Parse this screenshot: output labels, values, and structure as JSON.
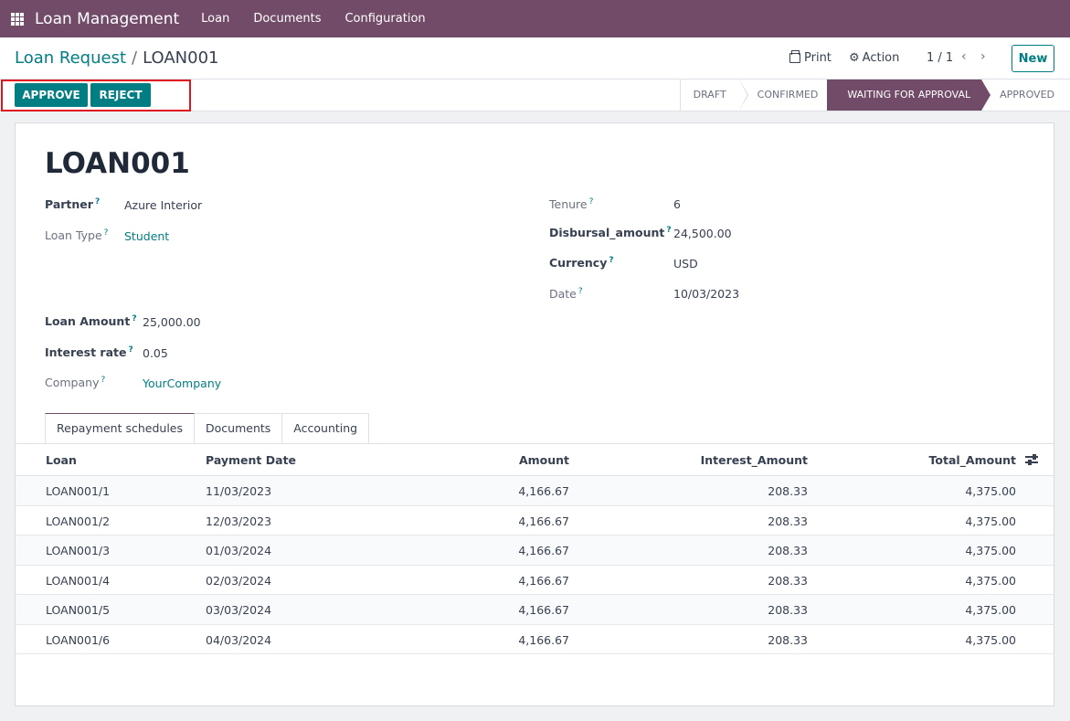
{
  "navbar": {
    "app_title": "Loan Management",
    "menu": [
      "Loan",
      "Documents",
      "Configuration"
    ]
  },
  "control": {
    "breadcrumb_parent": "Loan Request",
    "breadcrumb_sep": "/",
    "breadcrumb_current": "LOAN001",
    "print_label": "Print",
    "action_label": "Action",
    "pager": "1 / 1",
    "new_label": "New"
  },
  "statusbar": {
    "approve_label": "APPROVE",
    "reject_label": "REJECT",
    "stages": [
      "DRAFT",
      "CONFIRMED",
      "WAITING FOR APPROVAL",
      "APPROVED"
    ],
    "active_stage": "WAITING FOR APPROVAL"
  },
  "form": {
    "name": "LOAN001",
    "help_mark": "?",
    "partner_label": "Partner",
    "partner_value": "Azure Interior",
    "loan_type_label": "Loan Type",
    "loan_type_value": "Student",
    "tenure_label": "Tenure",
    "tenure_value": "6",
    "disbursal_label": "Disbursal_amount",
    "disbursal_value": "24,500.00",
    "currency_label": "Currency",
    "currency_value": "USD",
    "date_label": "Date",
    "date_value": "10/03/2023",
    "loan_amount_label": "Loan Amount",
    "loan_amount_value": "25,000.00",
    "interest_label": "Interest rate",
    "interest_value": "0.05",
    "company_label": "Company",
    "company_value": "YourCompany"
  },
  "tabs": [
    "Repayment schedules",
    "Documents",
    "Accounting"
  ],
  "table": {
    "headers": [
      "Loan",
      "Payment Date",
      "Amount",
      "Interest_Amount",
      "Total_Amount"
    ],
    "rows": [
      [
        "LOAN001/1",
        "11/03/2023",
        "4,166.67",
        "208.33",
        "4,375.00"
      ],
      [
        "LOAN001/2",
        "12/03/2023",
        "4,166.67",
        "208.33",
        "4,375.00"
      ],
      [
        "LOAN001/3",
        "01/03/2024",
        "4,166.67",
        "208.33",
        "4,375.00"
      ],
      [
        "LOAN001/4",
        "02/03/2024",
        "4,166.67",
        "208.33",
        "4,375.00"
      ],
      [
        "LOAN001/5",
        "03/03/2024",
        "4,166.67",
        "208.33",
        "4,375.00"
      ],
      [
        "LOAN001/6",
        "04/03/2024",
        "4,166.67",
        "208.33",
        "4,375.00"
      ]
    ]
  },
  "colors": {
    "brand": "#714b67",
    "accent": "#017e84",
    "highlight": "#e0141e"
  }
}
